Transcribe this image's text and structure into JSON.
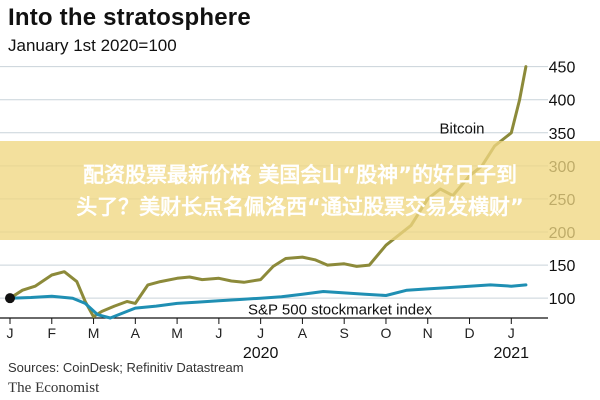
{
  "chart_data": {
    "type": "line",
    "title": "Into the stratosphere",
    "subtitle": "January 1st 2020=100",
    "ylim": [
      70,
      460
    ],
    "yticks": [
      100,
      150,
      200,
      250,
      300,
      350,
      400,
      450
    ],
    "ytick_labels": [
      "100",
      "150",
      "200",
      "250",
      "300",
      "350",
      "400",
      "450"
    ],
    "month_labels": [
      "J",
      "F",
      "M",
      "A",
      "M",
      "J",
      "J",
      "A",
      "S",
      "O",
      "N",
      "D",
      "J"
    ],
    "year_labels": [
      {
        "label": "2020",
        "month_index": 6
      },
      {
        "label": "2021",
        "month_index": 12
      }
    ],
    "x_domain": [
      0,
      12.4
    ],
    "series": [
      {
        "name": "Bitcoin",
        "color": "#8c8a3a",
        "x": [
          0,
          0.3,
          0.6,
          1.0,
          1.3,
          1.6,
          1.8,
          2.0,
          2.2,
          2.5,
          2.8,
          3.0,
          3.3,
          3.6,
          4.0,
          4.3,
          4.6,
          5.0,
          5.3,
          5.6,
          6.0,
          6.3,
          6.6,
          7.0,
          7.3,
          7.6,
          8.0,
          8.3,
          8.6,
          9.0,
          9.3,
          9.6,
          10.0,
          10.3,
          10.6,
          11.0,
          11.3,
          11.6,
          12.0,
          12.2,
          12.35
        ],
        "values": [
          100,
          112,
          118,
          135,
          140,
          125,
          95,
          72,
          80,
          88,
          95,
          92,
          120,
          125,
          130,
          132,
          128,
          130,
          126,
          124,
          128,
          148,
          160,
          162,
          158,
          150,
          152,
          148,
          150,
          180,
          195,
          210,
          250,
          265,
          255,
          285,
          300,
          330,
          350,
          400,
          450
        ]
      },
      {
        "name": "S&P 500 stockmarket index",
        "color": "#1f8fb3",
        "x": [
          0,
          0.5,
          1.0,
          1.5,
          1.8,
          2.1,
          2.4,
          2.8,
          3.0,
          3.5,
          4.0,
          4.5,
          5.0,
          5.5,
          6.0,
          6.5,
          7.0,
          7.5,
          8.0,
          8.5,
          9.0,
          9.5,
          10.0,
          10.5,
          11.0,
          11.5,
          12.0,
          12.35
        ],
        "values": [
          100,
          101,
          103,
          100,
          92,
          75,
          70,
          80,
          85,
          88,
          92,
          94,
          96,
          98,
          100,
          102,
          106,
          110,
          108,
          106,
          104,
          112,
          114,
          116,
          118,
          120,
          118,
          120
        ]
      }
    ]
  },
  "banner": {
    "line1": "配资股票最新价格 美国会山“股神”的好日子到",
    "line2": "头了？美财长点名佩洛西“通过股票交易发横财”"
  },
  "footer": {
    "sources": "Sources: CoinDesk; Refinitiv Datastream",
    "brand": "The Economist"
  }
}
